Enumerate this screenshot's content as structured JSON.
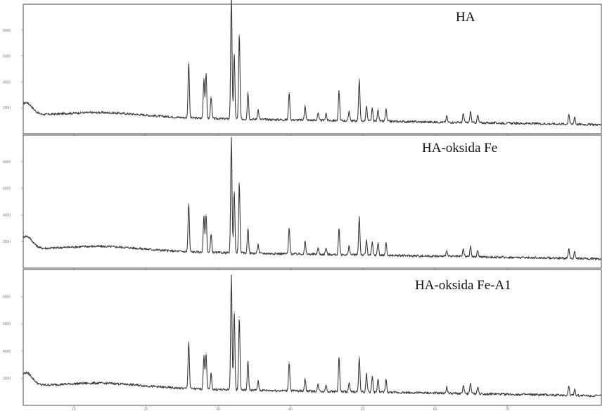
{
  "chart_data": [
    {
      "type": "line",
      "legend": "HA",
      "x_ticks": [
        "10",
        "20",
        "30",
        "40",
        "50",
        "60",
        "70"
      ],
      "y_ticks": [
        "2000",
        "4000",
        "6000",
        "8000"
      ],
      "peaks": [
        {
          "x": 25.9,
          "y": 0.45
        },
        {
          "x": 28.0,
          "y": 0.32
        },
        {
          "x": 28.3,
          "y": 0.36
        },
        {
          "x": 29.0,
          "y": 0.18
        },
        {
          "x": 31.8,
          "y": 1.0
        },
        {
          "x": 32.2,
          "y": 0.52
        },
        {
          "x": 32.9,
          "y": 0.68
        },
        {
          "x": 34.1,
          "y": 0.22
        },
        {
          "x": 35.5,
          "y": 0.08
        },
        {
          "x": 39.8,
          "y": 0.22
        },
        {
          "x": 42.0,
          "y": 0.12
        },
        {
          "x": 43.8,
          "y": 0.06
        },
        {
          "x": 44.9,
          "y": 0.06
        },
        {
          "x": 46.7,
          "y": 0.24
        },
        {
          "x": 48.1,
          "y": 0.08
        },
        {
          "x": 49.5,
          "y": 0.34
        },
        {
          "x": 50.5,
          "y": 0.12
        },
        {
          "x": 51.3,
          "y": 0.1
        },
        {
          "x": 52.1,
          "y": 0.1
        },
        {
          "x": 53.2,
          "y": 0.1
        },
        {
          "x": 61.6,
          "y": 0.05
        },
        {
          "x": 63.9,
          "y": 0.07
        },
        {
          "x": 64.9,
          "y": 0.09
        },
        {
          "x": 65.9,
          "y": 0.06
        },
        {
          "x": 78.5,
          "y": 0.08
        },
        {
          "x": 79.3,
          "y": 0.06
        }
      ]
    },
    {
      "type": "line",
      "legend": "HA-oksida Fe",
      "x_ticks": [
        "10",
        "20",
        "30",
        "40",
        "50",
        "60",
        "70"
      ],
      "y_ticks": [
        "2000",
        "4000",
        "6000",
        "8000"
      ],
      "peaks": [
        {
          "x": 25.9,
          "y": 0.38
        },
        {
          "x": 28.0,
          "y": 0.28
        },
        {
          "x": 28.3,
          "y": 0.3
        },
        {
          "x": 29.0,
          "y": 0.14
        },
        {
          "x": 31.8,
          "y": 0.9
        },
        {
          "x": 32.2,
          "y": 0.48
        },
        {
          "x": 32.9,
          "y": 0.55
        },
        {
          "x": 34.1,
          "y": 0.2
        },
        {
          "x": 35.5,
          "y": 0.07
        },
        {
          "x": 39.8,
          "y": 0.2
        },
        {
          "x": 42.0,
          "y": 0.1
        },
        {
          "x": 43.8,
          "y": 0.05
        },
        {
          "x": 44.9,
          "y": 0.05
        },
        {
          "x": 46.7,
          "y": 0.2
        },
        {
          "x": 48.1,
          "y": 0.07
        },
        {
          "x": 49.5,
          "y": 0.3
        },
        {
          "x": 50.5,
          "y": 0.12
        },
        {
          "x": 51.3,
          "y": 0.1
        },
        {
          "x": 52.1,
          "y": 0.1
        },
        {
          "x": 53.2,
          "y": 0.1
        },
        {
          "x": 61.6,
          "y": 0.05
        },
        {
          "x": 63.9,
          "y": 0.06
        },
        {
          "x": 64.9,
          "y": 0.08
        },
        {
          "x": 65.9,
          "y": 0.05
        },
        {
          "x": 78.5,
          "y": 0.07
        },
        {
          "x": 79.3,
          "y": 0.05
        }
      ]
    },
    {
      "type": "line",
      "legend": "HA-oksida Fe-A1",
      "x_ticks": [
        "10",
        "20",
        "30",
        "40",
        "50",
        "60",
        "70"
      ],
      "y_ticks": [
        "2000",
        "4000",
        "6000",
        "8000"
      ],
      "peaks": [
        {
          "x": 25.9,
          "y": 0.36
        },
        {
          "x": 28.0,
          "y": 0.26
        },
        {
          "x": 28.3,
          "y": 0.28
        },
        {
          "x": 29.0,
          "y": 0.12
        },
        {
          "x": 31.8,
          "y": 0.88
        },
        {
          "x": 32.2,
          "y": 0.6
        },
        {
          "x": 32.9,
          "y": 0.56
        },
        {
          "x": 34.1,
          "y": 0.22
        },
        {
          "x": 35.5,
          "y": 0.07
        },
        {
          "x": 39.8,
          "y": 0.22
        },
        {
          "x": 42.0,
          "y": 0.1
        },
        {
          "x": 43.8,
          "y": 0.05
        },
        {
          "x": 44.9,
          "y": 0.05
        },
        {
          "x": 46.7,
          "y": 0.26
        },
        {
          "x": 48.1,
          "y": 0.07
        },
        {
          "x": 49.5,
          "y": 0.27
        },
        {
          "x": 50.5,
          "y": 0.14
        },
        {
          "x": 51.3,
          "y": 0.12
        },
        {
          "x": 52.1,
          "y": 0.1
        },
        {
          "x": 53.2,
          "y": 0.1
        },
        {
          "x": 61.6,
          "y": 0.05
        },
        {
          "x": 63.9,
          "y": 0.06
        },
        {
          "x": 64.9,
          "y": 0.08
        },
        {
          "x": 65.9,
          "y": 0.05
        },
        {
          "x": 78.5,
          "y": 0.07
        },
        {
          "x": 79.3,
          "y": 0.05
        }
      ]
    }
  ]
}
